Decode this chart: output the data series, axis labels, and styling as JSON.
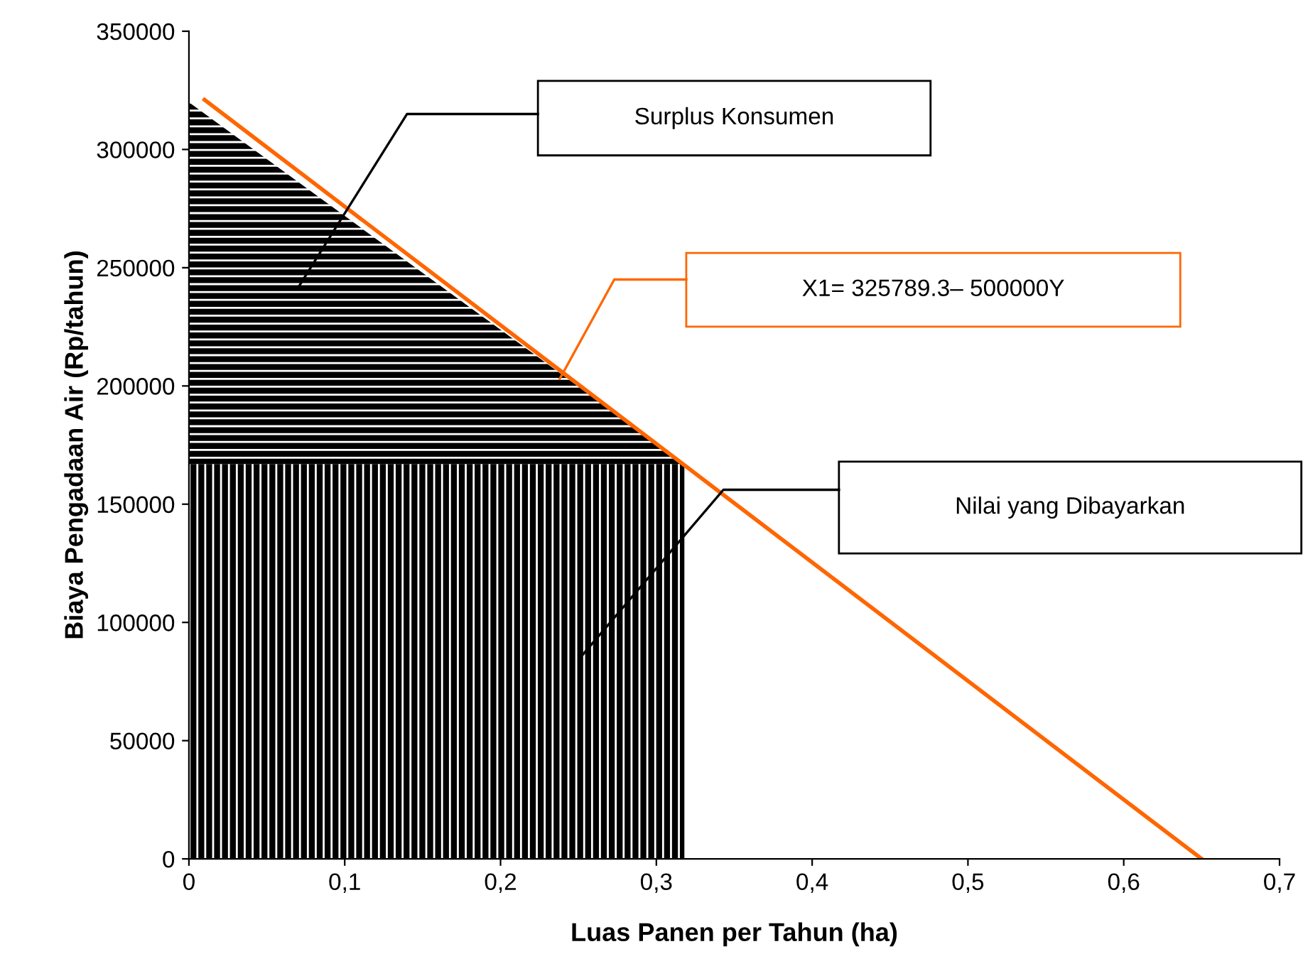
{
  "chart_data": {
    "type": "area",
    "xlabel": "Luas Panen per Tahun (ha)",
    "ylabel": "Biaya Pengadaan Air (Rp/tahun)",
    "stacked": true,
    "series": [
      {
        "color": "#000000",
        "x": [
          0,
          0.318
        ],
        "values": [
          167000,
          167000
        ]
      },
      {
        "color": "#000000",
        "x": [
          0,
          0.318
        ],
        "values": [
          153000,
          0
        ]
      },
      {
        "type": "line",
        "color": "#ff6600",
        "x": [
          0.01,
          0.65
        ],
        "values": [
          321000,
          0
        ]
      }
    ],
    "xlim": [
      0,
      0.7
    ],
    "xticks": [
      0,
      {
        "value": 0.1,
        "label": "0,1"
      },
      {
        "value": 0.2,
        "label": "0,2"
      },
      {
        "value": 0.3,
        "label": "0,3"
      },
      {
        "value": 0.4,
        "label": "0,4"
      },
      {
        "value": 0.5,
        "label": "0,5"
      },
      {
        "value": 0.6,
        "label": "0,6"
      },
      {
        "value": 0.7,
        "label": "0,7"
      }
    ],
    "ylim": [
      0,
      350000
    ],
    "yticks": [
      0,
      50000,
      100000,
      150000,
      200000,
      250000,
      300000,
      350000
    ],
    "grid": false,
    "legend": false,
    "annotations": [
      "Surplus Konsumen",
      "X1= 325789.3– 500000Y",
      "Nilai yang Dibayarkan"
    ]
  }
}
